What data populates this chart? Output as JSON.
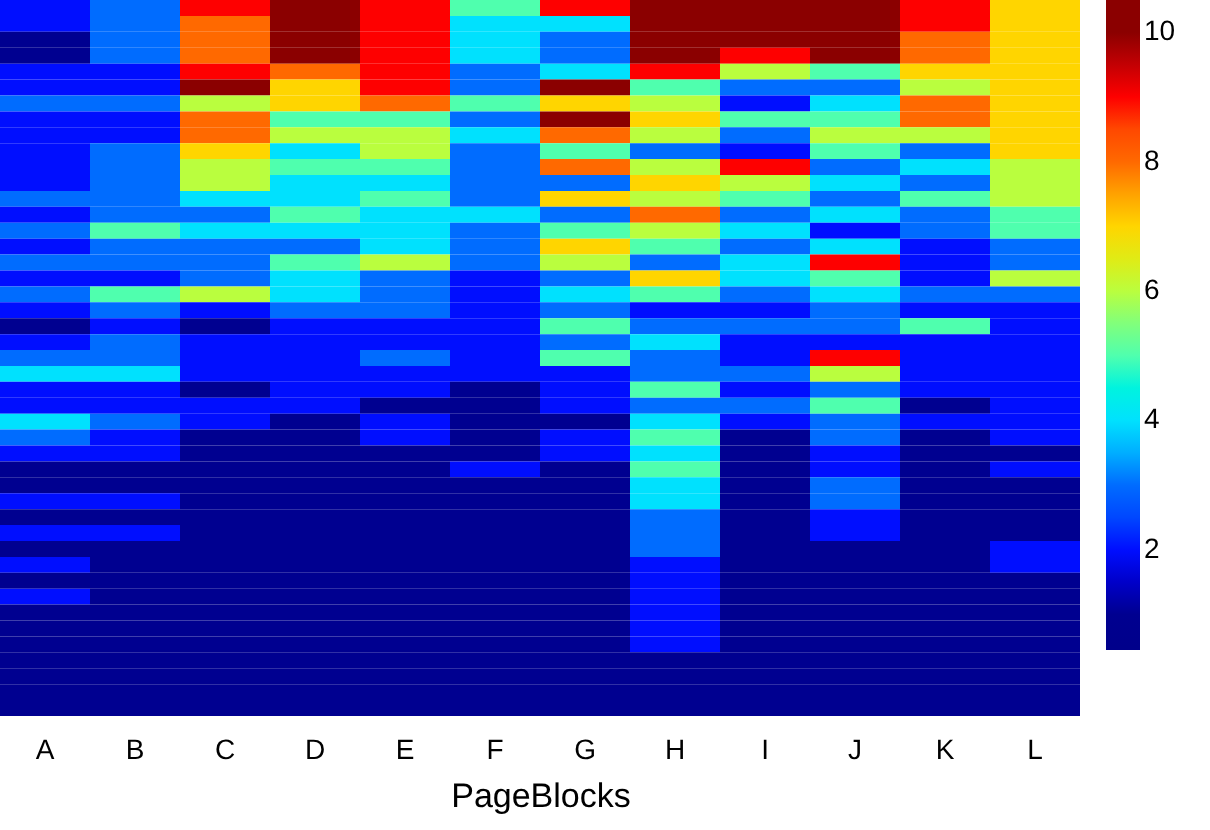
{
  "chart_data": {
    "type": "heatmap",
    "xlabel": "PageBlocks",
    "categories": [
      "A",
      "B",
      "C",
      "D",
      "E",
      "F",
      "G",
      "H",
      "I",
      "J",
      "K",
      "L"
    ],
    "y_categories": [
      null,
      null,
      null,
      null,
      null,
      null,
      null,
      null,
      null,
      null,
      null,
      null,
      null,
      null,
      null,
      null,
      null,
      null,
      null,
      null,
      null,
      null,
      null,
      null,
      null,
      null,
      null,
      null,
      null,
      null,
      null,
      null,
      null,
      null,
      null,
      null,
      null,
      null,
      null,
      null,
      null,
      null,
      null,
      null,
      null
    ],
    "cells": [
      [
        2,
        3,
        9,
        10,
        9,
        5,
        9,
        10,
        10,
        10,
        9,
        7
      ],
      [
        2,
        3,
        8,
        10,
        9,
        4,
        4,
        10,
        10,
        10,
        9,
        7
      ],
      [
        1,
        3,
        8,
        10,
        9,
        4,
        3,
        10,
        10,
        10,
        8,
        7
      ],
      [
        1,
        3,
        8,
        10,
        9,
        4,
        3,
        10,
        9,
        10,
        8,
        7
      ],
      [
        2,
        2,
        9,
        8,
        9,
        3,
        4,
        9,
        6,
        5,
        7,
        7
      ],
      [
        2,
        2,
        10,
        7,
        9,
        3,
        10,
        5,
        3,
        3,
        6,
        7
      ],
      [
        3,
        3,
        6,
        7,
        8,
        5,
        7,
        6,
        2,
        4,
        8,
        7
      ],
      [
        2,
        2,
        8,
        5,
        5,
        3,
        10,
        7,
        5,
        5,
        8,
        7
      ],
      [
        2,
        2,
        8,
        6,
        6,
        4,
        8,
        6,
        3,
        6,
        6,
        7
      ],
      [
        2,
        3,
        7,
        4,
        6,
        3,
        5,
        3,
        2,
        5,
        3,
        7
      ],
      [
        2,
        3,
        6,
        5,
        5,
        3,
        8,
        6,
        9,
        3,
        4,
        6
      ],
      [
        2,
        3,
        6,
        4,
        4,
        3,
        3,
        7,
        6,
        4,
        3,
        6
      ],
      [
        3,
        3,
        4,
        4,
        5,
        3,
        7,
        6,
        5,
        3,
        5,
        6
      ],
      [
        2,
        3,
        3,
        5,
        4,
        4,
        3,
        8,
        3,
        4,
        3,
        5
      ],
      [
        3,
        5,
        4,
        4,
        4,
        3,
        5,
        6,
        4,
        2,
        3,
        5
      ],
      [
        2,
        3,
        3,
        3,
        4,
        3,
        7,
        5,
        3,
        4,
        2,
        3
      ],
      [
        3,
        3,
        3,
        5,
        6,
        3,
        6,
        3,
        4,
        9,
        2,
        3
      ],
      [
        2,
        2,
        3,
        4,
        3,
        2,
        3,
        7,
        4,
        5,
        2,
        6
      ],
      [
        3,
        5,
        6,
        4,
        3,
        2,
        4,
        5,
        3,
        4,
        3,
        3
      ],
      [
        2,
        3,
        2,
        3,
        3,
        2,
        3,
        2,
        2,
        3,
        2,
        2
      ],
      [
        1,
        2,
        1,
        2,
        2,
        2,
        5,
        3,
        3,
        3,
        5,
        2
      ],
      [
        2,
        3,
        2,
        2,
        2,
        2,
        3,
        4,
        2,
        2,
        2,
        2
      ],
      [
        3,
        3,
        2,
        2,
        3,
        2,
        5,
        3,
        2,
        9,
        2,
        2
      ],
      [
        4,
        4,
        2,
        2,
        2,
        2,
        2,
        3,
        3,
        6,
        2,
        2
      ],
      [
        2,
        2,
        1,
        2,
        2,
        1,
        2,
        5,
        2,
        3,
        2,
        2
      ],
      [
        2,
        2,
        2,
        2,
        1,
        1,
        2,
        3,
        3,
        5,
        1,
        2
      ],
      [
        4,
        3,
        2,
        1,
        2,
        1,
        1,
        4,
        2,
        3,
        2,
        2
      ],
      [
        3,
        2,
        1,
        1,
        2,
        1,
        2,
        5,
        1,
        3,
        1,
        2
      ],
      [
        2,
        2,
        1,
        1,
        1,
        1,
        2,
        4,
        1,
        2,
        1,
        1
      ],
      [
        1,
        1,
        1,
        1,
        1,
        2,
        1,
        5,
        1,
        2,
        1,
        2
      ],
      [
        1,
        1,
        1,
        1,
        1,
        1,
        1,
        4,
        1,
        3,
        1,
        1
      ],
      [
        2,
        2,
        1,
        1,
        1,
        1,
        1,
        4,
        1,
        3,
        1,
        1
      ],
      [
        1,
        1,
        1,
        1,
        1,
        1,
        1,
        3,
        1,
        2,
        1,
        1
      ],
      [
        2,
        2,
        1,
        1,
        1,
        1,
        1,
        3,
        1,
        2,
        1,
        1
      ],
      [
        1,
        1,
        1,
        1,
        1,
        1,
        1,
        3,
        1,
        1,
        1,
        2
      ],
      [
        2,
        1,
        1,
        1,
        1,
        1,
        1,
        2,
        1,
        1,
        1,
        2
      ],
      [
        1,
        1,
        1,
        1,
        1,
        1,
        1,
        2,
        1,
        1,
        1,
        1
      ],
      [
        2,
        1,
        1,
        1,
        1,
        1,
        1,
        2,
        1,
        1,
        1,
        1
      ],
      [
        1,
        1,
        1,
        1,
        1,
        1,
        1,
        2,
        1,
        1,
        1,
        1
      ],
      [
        1,
        1,
        1,
        1,
        1,
        1,
        1,
        2,
        1,
        1,
        1,
        1
      ],
      [
        1,
        1,
        1,
        1,
        1,
        1,
        1,
        2,
        1,
        1,
        1,
        1
      ],
      [
        1,
        1,
        1,
        1,
        1,
        1,
        1,
        1,
        1,
        1,
        1,
        1
      ],
      [
        1,
        1,
        1,
        1,
        1,
        1,
        1,
        1,
        1,
        1,
        1,
        1
      ],
      [
        1,
        1,
        1,
        1,
        1,
        1,
        1,
        1,
        1,
        1,
        1,
        1
      ],
      [
        1,
        1,
        1,
        1,
        1,
        1,
        1,
        1,
        1,
        1,
        1,
        1
      ]
    ],
    "clim": [
      0.45,
      10.5
    ],
    "cticks": [
      2,
      4,
      6,
      8,
      10
    ],
    "colors": [
      "#00008b",
      "#0000ff",
      "#0066ff",
      "#00e0ff",
      "#4dffb0",
      "#b8ff40",
      "#ffd700",
      "#ff6a00",
      "#ff0000",
      "#8b0000"
    ]
  }
}
